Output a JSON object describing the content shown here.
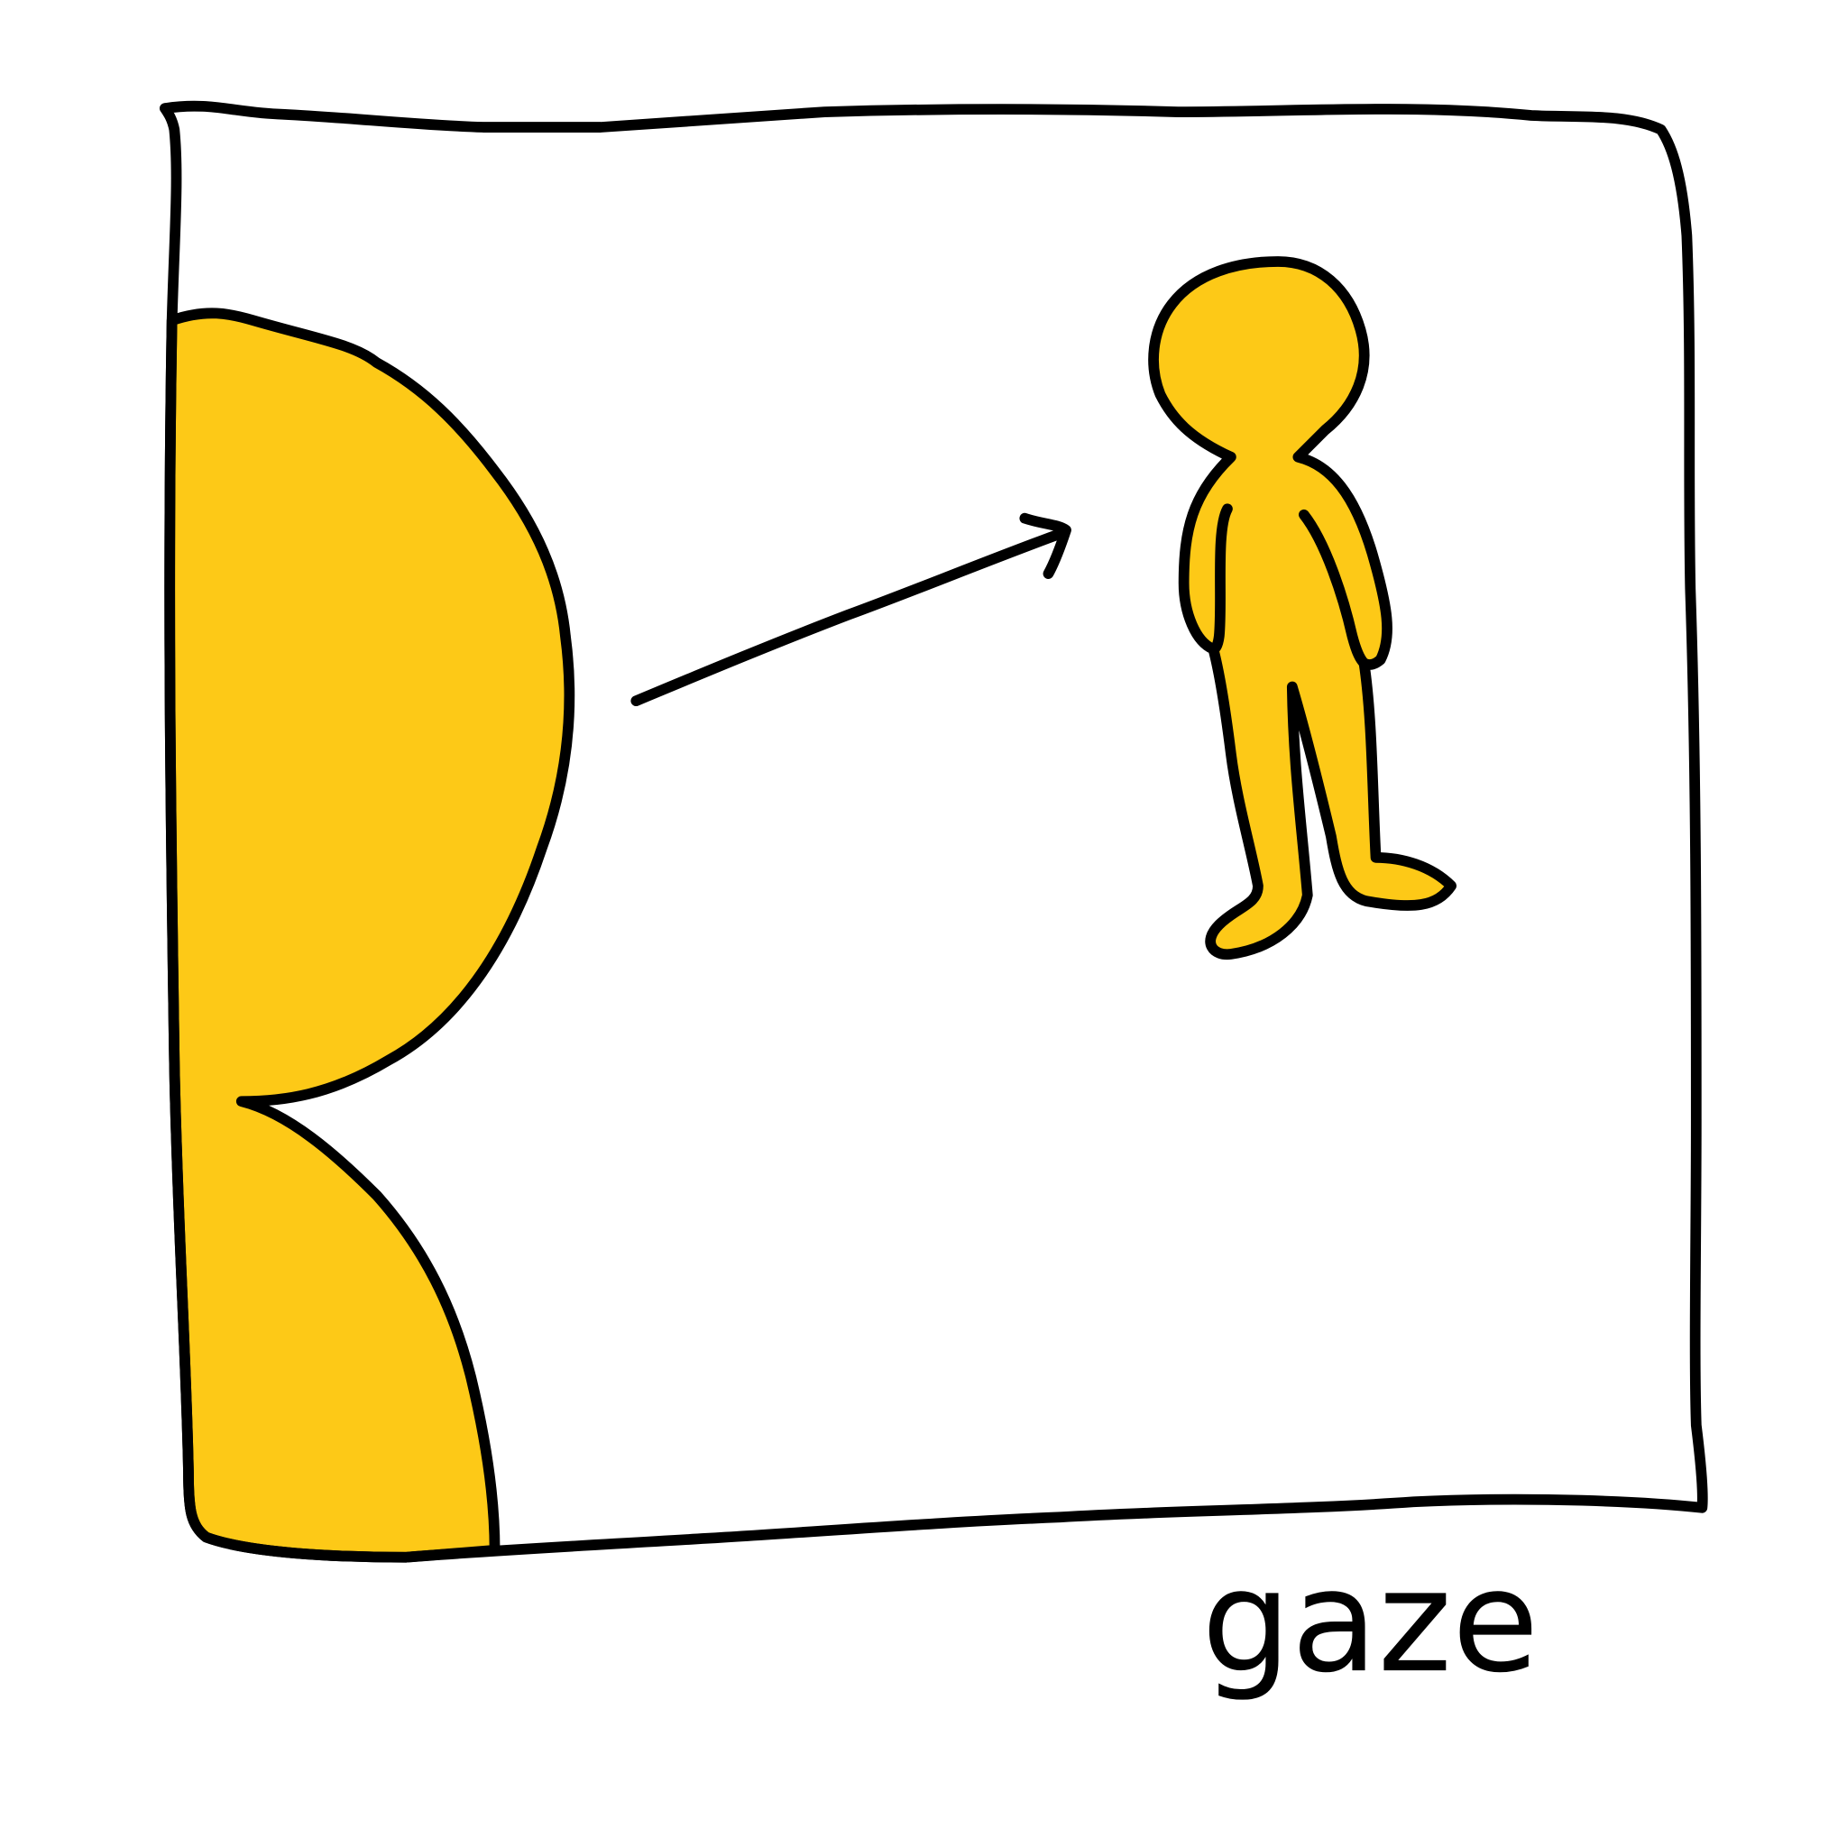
{
  "caption": "gaze"
}
